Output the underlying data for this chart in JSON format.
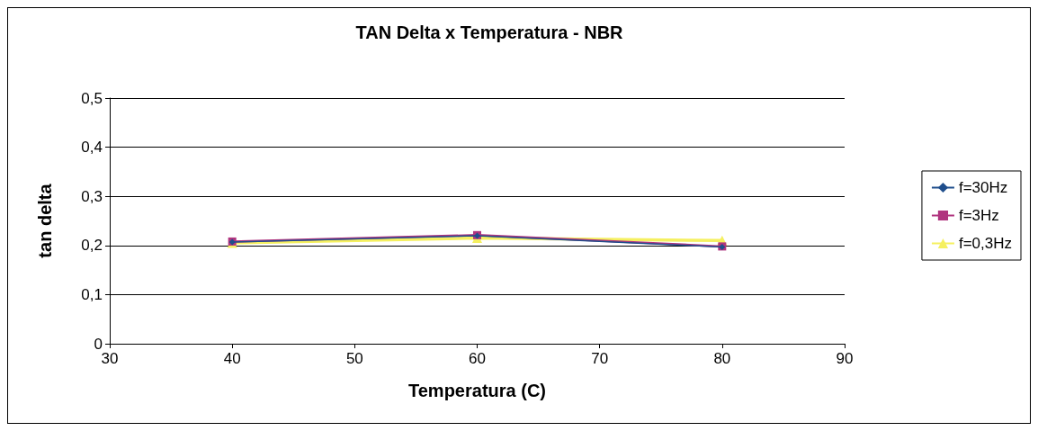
{
  "chart_data": {
    "type": "line",
    "title": "TAN Delta x Temperatura - NBR",
    "xlabel": "Temperatura (C)",
    "ylabel": "tan delta",
    "x": [
      40,
      60,
      80
    ],
    "xlim": [
      30,
      90
    ],
    "xticks": [
      30,
      40,
      50,
      60,
      70,
      80,
      90
    ],
    "ylim": [
      0,
      0.5
    ],
    "yticks": [
      {
        "value": 0,
        "label": "0"
      },
      {
        "value": 0.1,
        "label": "0,1"
      },
      {
        "value": 0.2,
        "label": "0,2"
      },
      {
        "value": 0.3,
        "label": "0,3"
      },
      {
        "value": 0.4,
        "label": "0,4"
      },
      {
        "value": 0.5,
        "label": "0,5"
      }
    ],
    "grid": "y",
    "legend": "right",
    "series": [
      {
        "name": "f=30Hz",
        "color": "#1f4e8c",
        "marker": "diamond",
        "values": [
          0.207,
          0.22,
          0.197
        ]
      },
      {
        "name": "f=3Hz",
        "color": "#b0357f",
        "marker": "square",
        "values": [
          0.208,
          0.221,
          0.198
        ]
      },
      {
        "name": "f=0,3Hz",
        "color": "#f5f060",
        "marker": "triangle",
        "values": [
          0.205,
          0.215,
          0.21
        ]
      }
    ]
  }
}
